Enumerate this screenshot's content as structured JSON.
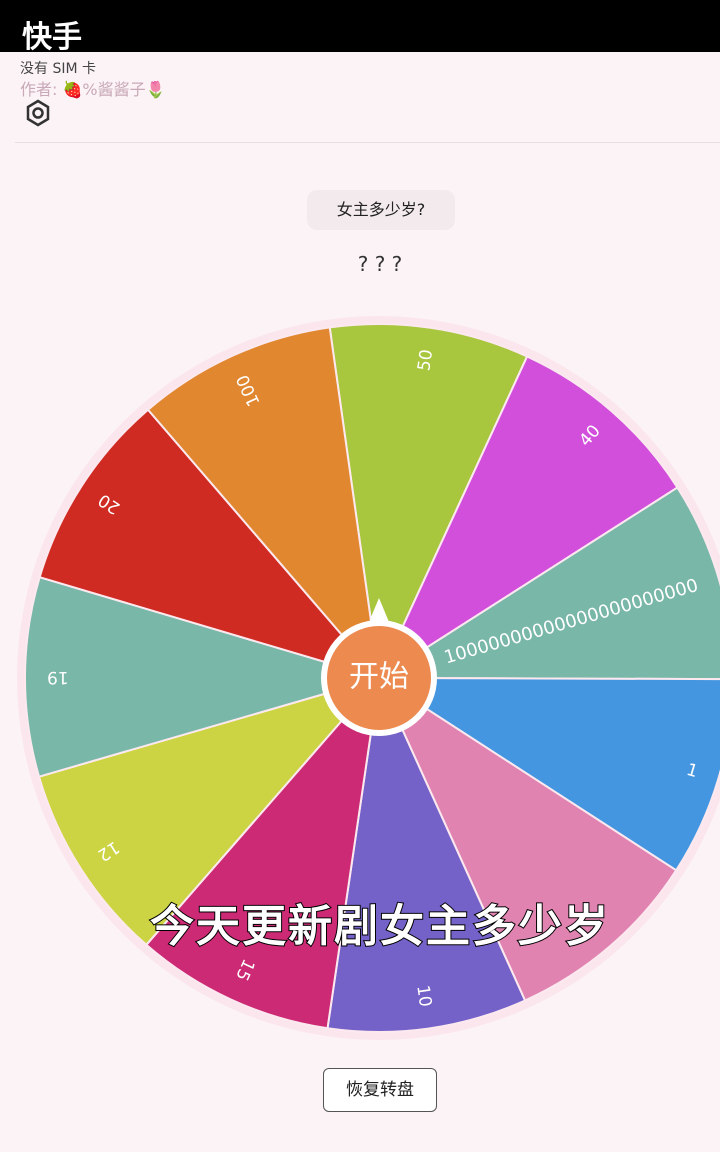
{
  "app": {
    "brand": "快手",
    "status": "没有 SIM 卡",
    "author": "作者: 🍓%酱酱子🌷",
    "question": "女主多少岁?",
    "result": "? ? ?",
    "start": "开始",
    "reset": "恢复转盘",
    "caption": "今天更新剧女主多少岁"
  },
  "wheel": {
    "segments": [
      {
        "label": "50",
        "color": "#a9c63f"
      },
      {
        "label": "40",
        "color": "#d24fdc"
      },
      {
        "label": "10000000000000000000000",
        "color": "#79b7a8"
      },
      {
        "label": "1",
        "color": "#4596e0"
      },
      {
        "color": "#e083b0"
      },
      {
        "label": "10",
        "color": "#7562c8"
      },
      {
        "label": "15",
        "color": "#cc2a75"
      },
      {
        "label": "12",
        "color": "#cdd443"
      },
      {
        "label": "19",
        "color": "#79b7a8"
      },
      {
        "label": "20",
        "color": "#cf2b22"
      },
      {
        "label": "100",
        "color": "#e08730"
      }
    ]
  }
}
